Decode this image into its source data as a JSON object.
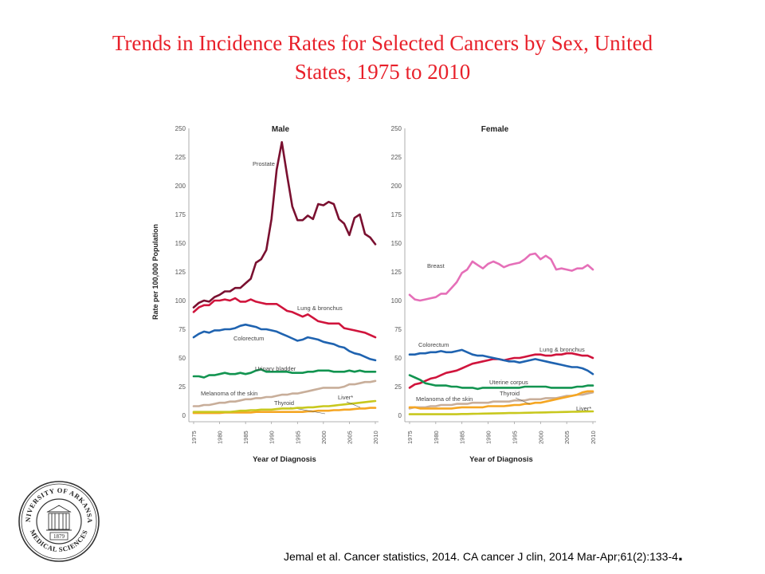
{
  "slide": {
    "title_line1": "Trends in Incidence Rates for Selected Cancers by Sex, United",
    "title_line2": "States, 1975 to 2010",
    "citation": "Jemal et al. Cancer statistics, 2014.  CA cancer J clin, 2014 Mar-Apr;61(2):133-4",
    "citation_end": ".",
    "seal_text_top": "UNIVERSITY OF ARKANSAS",
    "seal_text_bottom": "MEDICAL SCIENCES",
    "seal_year": "1879"
  },
  "colors": {
    "title": "#e8202a",
    "prostate": "#7a1030",
    "lung": "#d0143c",
    "colorectum": "#1f63b0",
    "urinary_bladder": "#129450",
    "melanoma": "#c8ae9a",
    "thyroid": "#f5a623",
    "liver": "#c8c81e",
    "breast": "#e56fb8",
    "uterine": "#129450"
  },
  "chart_data": [
    {
      "type": "line",
      "title": "Male",
      "ylabel": "Rate per 100,000 Population",
      "xlabel": "Year of Diagnosis",
      "ylim": [
        0,
        250
      ],
      "yticks": [
        0,
        25,
        50,
        75,
        100,
        125,
        150,
        175,
        200,
        225,
        250
      ],
      "xticks": [
        1975,
        1980,
        1985,
        1990,
        1995,
        2000,
        2005,
        2010
      ],
      "x": [
        1975,
        1976,
        1977,
        1978,
        1979,
        1980,
        1981,
        1982,
        1983,
        1984,
        1985,
        1986,
        1987,
        1988,
        1989,
        1990,
        1991,
        1992,
        1993,
        1994,
        1995,
        1996,
        1997,
        1998,
        1999,
        2000,
        2001,
        2002,
        2003,
        2004,
        2005,
        2006,
        2007,
        2008,
        2009,
        2010
      ],
      "series": [
        {
          "name": "Prostate",
          "color_key": "prostate",
          "values": [
            94,
            98,
            100,
            99,
            103,
            105,
            108,
            108,
            111,
            111,
            115,
            119,
            133,
            136,
            144,
            171,
            214,
            238,
            209,
            182,
            170,
            170,
            174,
            171,
            184,
            183,
            186,
            184,
            171,
            167,
            157,
            172,
            175,
            158,
            155,
            149
          ]
        },
        {
          "name": "Lung & bronchus",
          "color_key": "lung",
          "values": [
            90,
            94,
            96,
            96,
            100,
            100,
            101,
            100,
            102,
            99,
            99,
            101,
            99,
            98,
            97,
            97,
            97,
            94,
            91,
            90,
            88,
            86,
            88,
            85,
            82,
            81,
            80,
            80,
            80,
            76,
            75,
            74,
            73,
            72,
            70,
            68
          ]
        },
        {
          "name": "Colorectum",
          "color_key": "colorectum",
          "values": [
            68,
            71,
            73,
            72,
            74,
            74,
            75,
            75,
            76,
            78,
            79,
            78,
            77,
            75,
            75,
            74,
            73,
            71,
            69,
            67,
            65,
            66,
            68,
            67,
            66,
            64,
            63,
            62,
            60,
            59,
            56,
            54,
            53,
            51,
            49,
            48
          ]
        },
        {
          "name": "Urinary bladder",
          "color_key": "urinary_bladder",
          "values": [
            34,
            34,
            33,
            35,
            35,
            36,
            37,
            36,
            36,
            37,
            36,
            37,
            39,
            40,
            38,
            38,
            38,
            38,
            38,
            37,
            37,
            37,
            38,
            38,
            39,
            39,
            39,
            38,
            38,
            38,
            39,
            38,
            39,
            38,
            38,
            38
          ]
        },
        {
          "name": "Melanoma of the skin",
          "color_key": "melanoma",
          "values": [
            8,
            8,
            9,
            9,
            10,
            11,
            11,
            12,
            12,
            13,
            14,
            14,
            15,
            15,
            16,
            16,
            17,
            18,
            18,
            19,
            19,
            20,
            21,
            22,
            23,
            24,
            24,
            24,
            24,
            25,
            27,
            27,
            28,
            29,
            29,
            30
          ]
        },
        {
          "name": "Thyroid",
          "color_key": "thyroid",
          "values": [
            2,
            2,
            2,
            2,
            2,
            2,
            2.5,
            2.5,
            2.5,
            2.5,
            2.5,
            2.5,
            3,
            3,
            3,
            3,
            3,
            3,
            3,
            3,
            3,
            3,
            3.5,
            3.5,
            4,
            4,
            4,
            4.5,
            4.5,
            5,
            5,
            5.5,
            6,
            6,
            6.5,
            6.5
          ]
        },
        {
          "name": "Liver*",
          "color_key": "liver",
          "values": [
            3,
            3,
            3,
            3,
            3,
            3,
            3,
            3,
            3.5,
            4,
            4,
            4.5,
            4.5,
            5,
            5,
            5,
            5.5,
            6,
            6,
            6,
            6.5,
            6.5,
            7,
            7,
            7.5,
            8,
            8,
            8.5,
            9,
            9.5,
            10,
            10.5,
            11,
            11.5,
            12,
            12.5
          ]
        }
      ]
    },
    {
      "type": "line",
      "title": "Female",
      "xlabel": "Year of Diagnosis",
      "ylim": [
        0,
        250
      ],
      "yticks": [
        0,
        25,
        50,
        75,
        100,
        125,
        150,
        175,
        200,
        225,
        250
      ],
      "xticks": [
        1975,
        1980,
        1985,
        1990,
        1995,
        2000,
        2005,
        2010
      ],
      "x": [
        1975,
        1976,
        1977,
        1978,
        1979,
        1980,
        1981,
        1982,
        1983,
        1984,
        1985,
        1986,
        1987,
        1988,
        1989,
        1990,
        1991,
        1992,
        1993,
        1994,
        1995,
        1996,
        1997,
        1998,
        1999,
        2000,
        2001,
        2002,
        2003,
        2004,
        2005,
        2006,
        2007,
        2008,
        2009,
        2010
      ],
      "series": [
        {
          "name": "Breast",
          "color_key": "breast",
          "values": [
            105,
            101,
            100,
            101,
            102,
            103,
            106,
            106,
            111,
            116,
            124,
            127,
            134,
            131,
            128,
            132,
            134,
            132,
            129,
            131,
            132,
            133,
            136,
            140,
            141,
            136,
            139,
            136,
            127,
            128,
            127,
            126,
            128,
            128,
            131,
            127
          ]
        },
        {
          "name": "Lung & bronchus",
          "color_key": "lung",
          "values": [
            24,
            27,
            28,
            30,
            32,
            33,
            35,
            37,
            38,
            39,
            41,
            43,
            45,
            46,
            47,
            48,
            49,
            49,
            48,
            49,
            50,
            50,
            51,
            52,
            53,
            53,
            52,
            52,
            53,
            53,
            54,
            54,
            53,
            52,
            52,
            50
          ]
        },
        {
          "name": "Colorectum",
          "color_key": "colorectum",
          "values": [
            53,
            53,
            54,
            54,
            55,
            55,
            56,
            55,
            55,
            56,
            57,
            55,
            53,
            52,
            52,
            51,
            50,
            49,
            48,
            47,
            47,
            46,
            47,
            48,
            49,
            48,
            47,
            46,
            45,
            44,
            43,
            42,
            42,
            41,
            39,
            36
          ]
        },
        {
          "name": "Uterine corpus",
          "color_key": "uterine",
          "values": [
            35,
            33,
            31,
            28,
            27,
            26,
            26,
            26,
            25,
            25,
            24,
            24,
            24,
            23,
            24,
            24,
            24,
            24,
            24,
            24,
            24,
            24,
            25,
            25,
            25,
            25,
            25,
            24,
            24,
            24,
            24,
            24,
            25,
            25,
            26,
            26
          ]
        },
        {
          "name": "Melanoma of the skin",
          "color_key": "melanoma",
          "values": [
            6,
            7,
            7,
            7,
            8,
            8,
            9,
            9,
            9,
            10,
            10,
            10,
            11,
            11,
            11,
            11,
            12,
            12,
            12,
            12,
            13,
            13,
            13,
            14,
            14,
            14,
            15,
            15,
            15,
            16,
            17,
            17,
            18,
            18,
            19,
            20
          ]
        },
        {
          "name": "Thyroid",
          "color_key": "thyroid",
          "values": [
            7,
            7,
            6,
            6,
            6,
            6,
            6,
            6,
            6,
            6.5,
            7,
            7,
            7,
            7,
            7,
            8,
            8,
            8,
            8,
            8.5,
            9,
            9,
            10,
            10,
            11,
            11,
            12,
            13,
            14,
            15,
            16,
            17,
            18,
            20,
            21,
            21
          ]
        },
        {
          "name": "Liver*",
          "color_key": "liver",
          "values": [
            1,
            1,
            1,
            1,
            1,
            1,
            1,
            1,
            1,
            1,
            1.2,
            1.2,
            1.3,
            1.4,
            1.5,
            1.6,
            1.7,
            1.8,
            1.9,
            2,
            2,
            2.1,
            2.2,
            2.3,
            2.4,
            2.5,
            2.6,
            2.7,
            2.8,
            2.9,
            3,
            3.1,
            3.2,
            3.3,
            3.4,
            3.5
          ]
        }
      ]
    }
  ]
}
